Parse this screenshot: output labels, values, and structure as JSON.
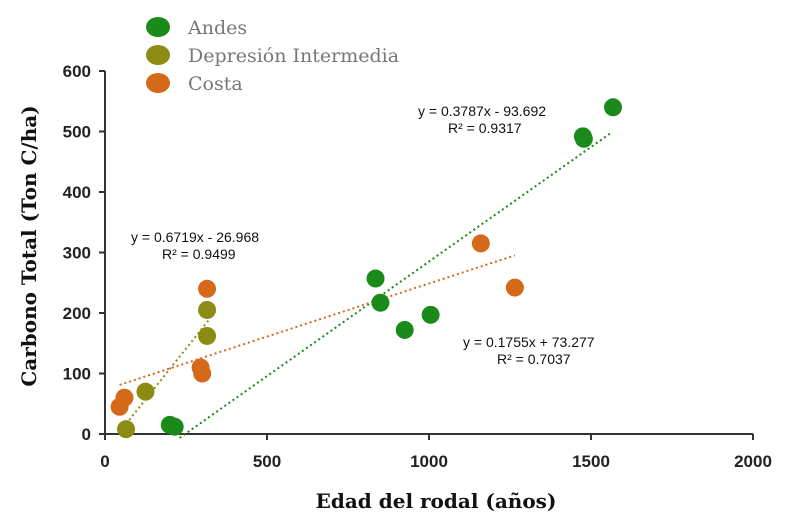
{
  "chart_data": {
    "type": "scatter",
    "title": "",
    "xlabel": "Edad del rodal (años)",
    "ylabel": "Carbono Total (Ton C/ha)",
    "xlim": [
      0,
      2000
    ],
    "ylim": [
      0,
      600
    ],
    "xticks": [
      0,
      500,
      1000,
      1500,
      2000
    ],
    "yticks": [
      0,
      100,
      200,
      300,
      400,
      500,
      600
    ],
    "grid": false,
    "legend_position": "top-left",
    "series": [
      {
        "name": "Andes",
        "color": "#1a8a1a",
        "points": [
          [
            200,
            15
          ],
          [
            215,
            12
          ],
          [
            835,
            257
          ],
          [
            850,
            217
          ],
          [
            925,
            172
          ],
          [
            1005,
            197
          ],
          [
            1475,
            492
          ],
          [
            1478,
            488
          ],
          [
            1568,
            540
          ]
        ],
        "trendline": {
          "slope": 0.3787,
          "intercept": -93.692,
          "x_range": [
            230,
            1565
          ],
          "equation": "y = 0.3787x - 93.692",
          "r2": "R² = 0.9317"
        }
      },
      {
        "name": "Depresión Intermedia",
        "color": "#8c8c14",
        "points": [
          [
            65,
            8
          ],
          [
            125,
            70
          ],
          [
            315,
            205
          ],
          [
            315,
            162
          ]
        ],
        "trendline": {
          "slope": 0.6719,
          "intercept": -26.968,
          "x_range": [
            65,
            320
          ],
          "equation": "y = 0.6719x - 26.968",
          "r2": "R² = 0.9499"
        }
      },
      {
        "name": "Costa",
        "color": "#d4691a",
        "points": [
          [
            45,
            45
          ],
          [
            60,
            60
          ],
          [
            295,
            110
          ],
          [
            300,
            100
          ],
          [
            315,
            240
          ],
          [
            1160,
            315
          ],
          [
            1265,
            242
          ]
        ],
        "trendline": {
          "slope": 0.1755,
          "intercept": 73.277,
          "x_range": [
            45,
            1265
          ],
          "equation": "y = 0.1755x + 73.277",
          "r2": "R² = 0.7037"
        }
      }
    ]
  }
}
